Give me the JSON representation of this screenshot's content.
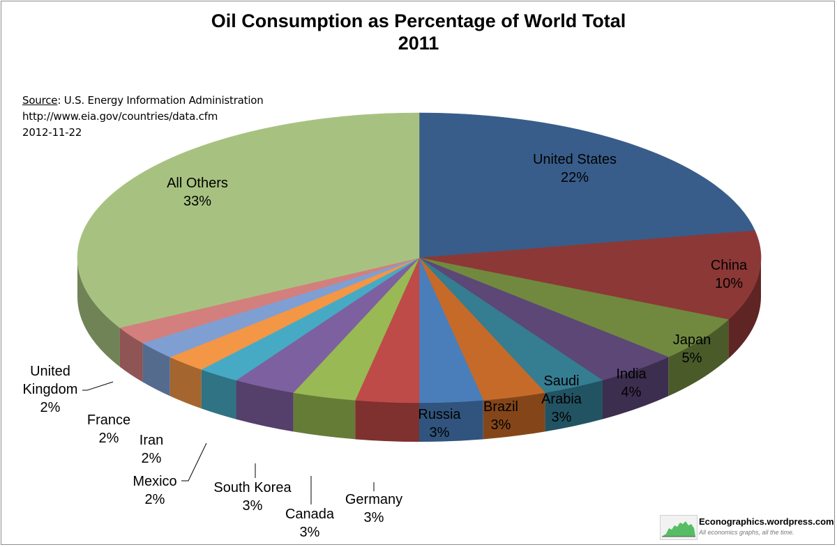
{
  "chart_data": {
    "type": "pie",
    "title": "Oil Consumption as Percentage of World Total",
    "subtitle": "2011",
    "unit": "%",
    "slices": [
      {
        "label": "United States",
        "value": 22,
        "display": "22%",
        "color": "#385D8A",
        "side": "#263F5E"
      },
      {
        "label": "China",
        "value": 10,
        "display": "10%",
        "color": "#8C3836",
        "side": "#5E2524"
      },
      {
        "label": "Japan",
        "value": 5,
        "display": "5%",
        "color": "#71893F",
        "side": "#4A5A29"
      },
      {
        "label": "India",
        "value": 4,
        "display": "4%",
        "color": "#5C4776",
        "side": "#3C2E4E"
      },
      {
        "label": "Saudi Arabia",
        "value": 3,
        "display": "3%",
        "color": "#357D91",
        "side": "#225362"
      },
      {
        "label": "Brazil",
        "value": 3,
        "display": "3%",
        "color": "#C66A2A",
        "side": "#844619"
      },
      {
        "label": "Russia",
        "value": 3,
        "display": "3%",
        "color": "#4A7EBB",
        "side": "#30547D"
      },
      {
        "label": "Germany",
        "value": 3,
        "display": "3%",
        "color": "#BE4B48",
        "side": "#7E312F"
      },
      {
        "label": "Canada",
        "value": 3,
        "display": "3%",
        "color": "#98B954",
        "side": "#657C37"
      },
      {
        "label": "South Korea",
        "value": 3,
        "display": "3%",
        "color": "#7D60A0",
        "side": "#54406B"
      },
      {
        "label": "Mexico",
        "value": 2,
        "display": "2%",
        "color": "#46AAC5",
        "side": "#2F7385"
      },
      {
        "label": "Iran",
        "value": 2,
        "display": "2%",
        "color": "#F39645",
        "side": "#A4652E"
      },
      {
        "label": "France",
        "value": 2,
        "display": "2%",
        "color": "#7F9FD3",
        "side": "#556B8E"
      },
      {
        "label": "United Kingdom",
        "value": 2,
        "display": "2%",
        "color": "#D37F7D",
        "side": "#8E5554"
      },
      {
        "label": "All Others",
        "value": 33,
        "display": "33%",
        "color": "#A7C280",
        "side": "#708356"
      }
    ]
  },
  "source": {
    "prefix": "Source",
    "agency": ": U.S. Energy Information Administration",
    "url": "http://www.eia.gov/countries/data.cfm",
    "date": "2012-11-22"
  },
  "branding": {
    "name": "Econographics.wordpress.com",
    "tagline": "All economics graphs, all the time."
  }
}
